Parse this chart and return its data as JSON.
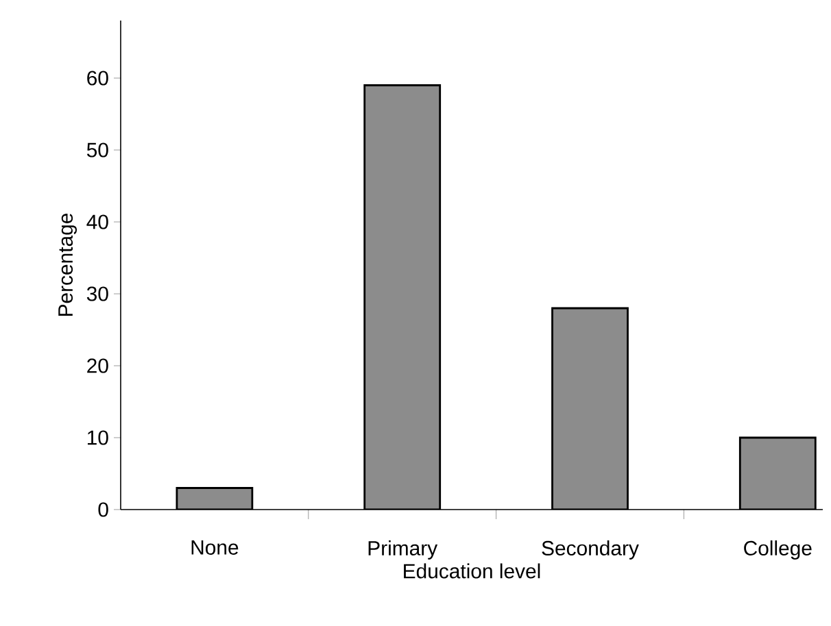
{
  "chart_data": {
    "type": "bar",
    "xlabel": "Education level",
    "ylabel": "Percentage",
    "categories": [
      "None",
      "Primary",
      "Secondary",
      "College"
    ],
    "values": [
      3,
      59,
      28,
      10
    ],
    "color": "#8c8c8c",
    "ylim": [
      0,
      68
    ],
    "yticks": [
      0,
      10,
      20,
      30,
      40,
      50,
      60
    ]
  }
}
